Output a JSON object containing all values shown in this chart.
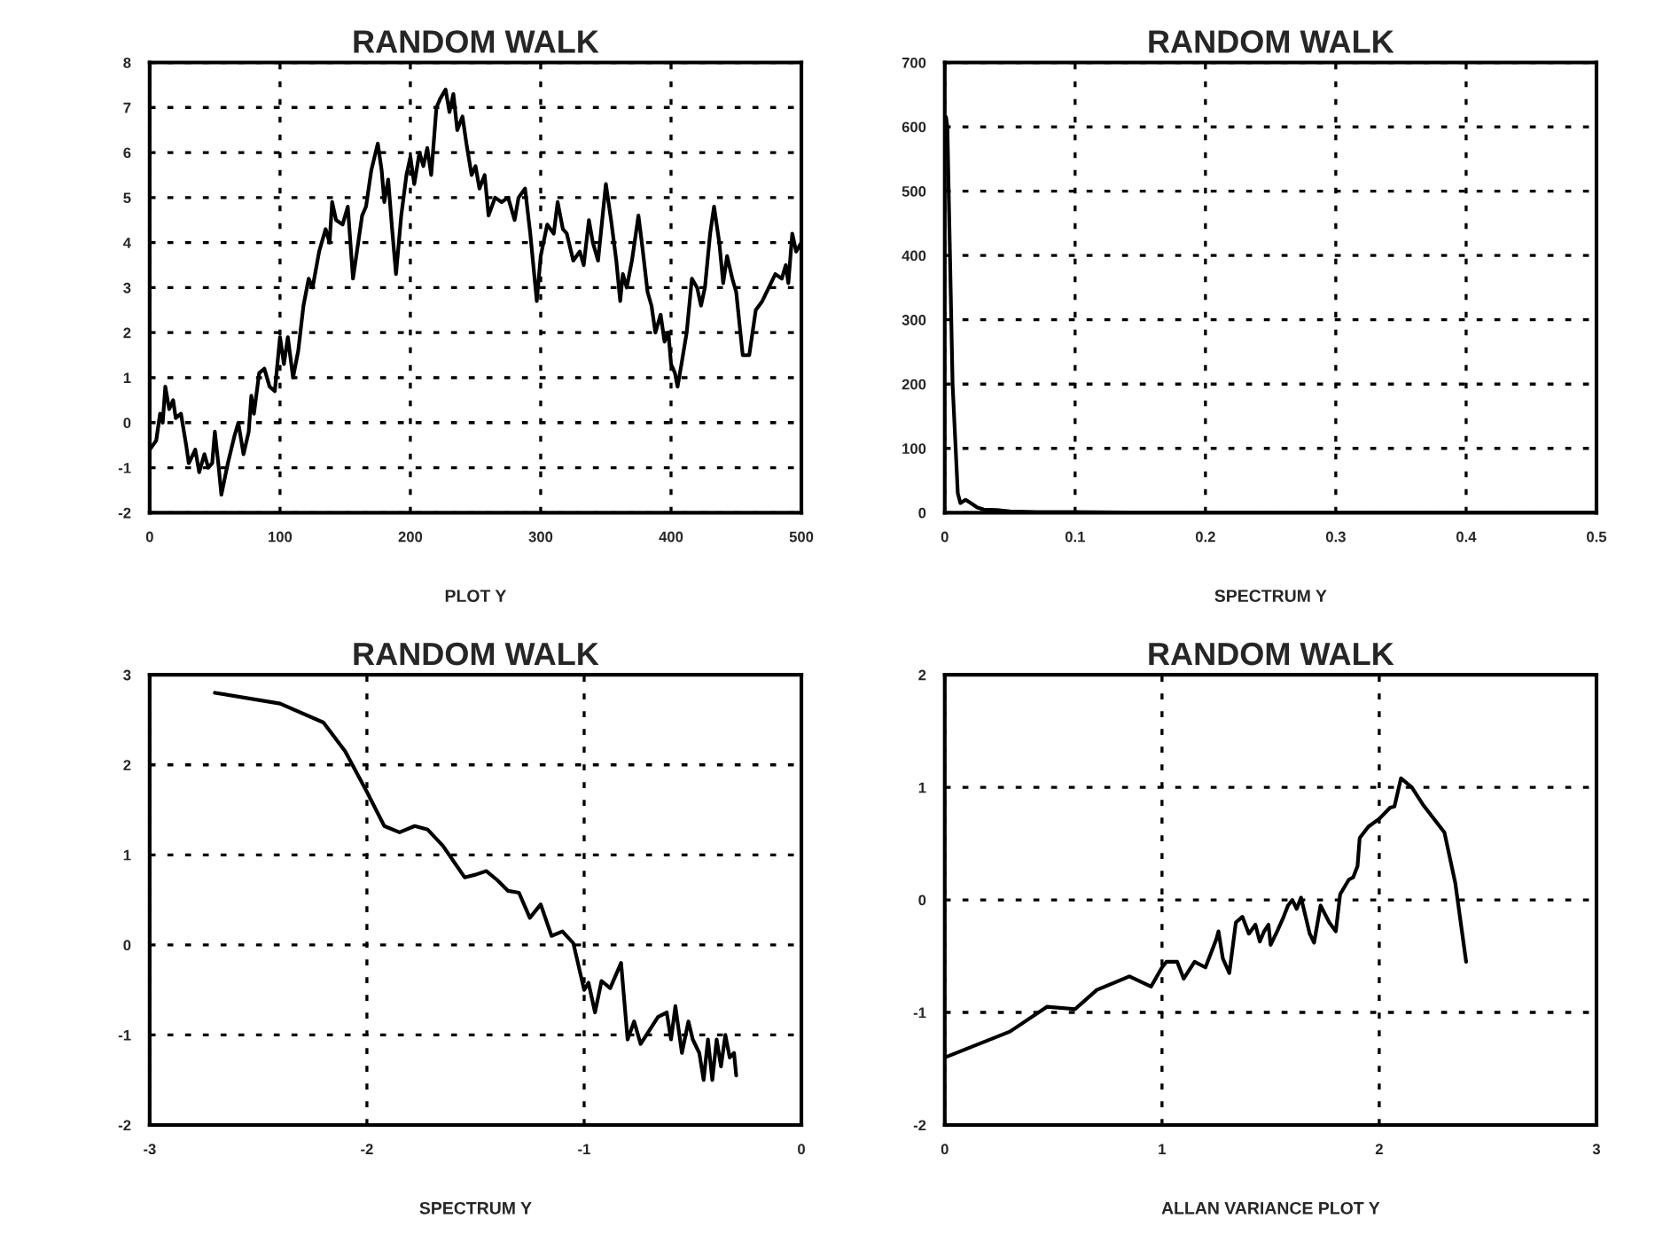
{
  "chart_data": [
    {
      "type": "line",
      "title": "RANDOM WALK",
      "xlabel": "PLOT Y",
      "xlim": [
        0,
        500
      ],
      "xticks": [
        0,
        100,
        200,
        300,
        400,
        500
      ],
      "ylim": [
        -2,
        8
      ],
      "yticks": [
        -2,
        -1,
        0,
        1,
        2,
        3,
        4,
        5,
        6,
        7,
        8
      ],
      "grid": true,
      "line_style": "solid",
      "series": [
        {
          "color": "#000000",
          "x": [
            0,
            5,
            8,
            10,
            12,
            15,
            18,
            20,
            24,
            28,
            30,
            35,
            38,
            42,
            45,
            48,
            50,
            53,
            55,
            60,
            65,
            68,
            72,
            76,
            78,
            80,
            84,
            88,
            92,
            96,
            100,
            103,
            106,
            110,
            114,
            118,
            122,
            125,
            130,
            135,
            138,
            140,
            143,
            148,
            152,
            156,
            160,
            163,
            166,
            170,
            175,
            178,
            180,
            183,
            186,
            189,
            193,
            197,
            200,
            203,
            207,
            210,
            213,
            216,
            220,
            223,
            227,
            230,
            233,
            236,
            240,
            243,
            247,
            250,
            253,
            257,
            260,
            265,
            270,
            275,
            280,
            283,
            288,
            292,
            297,
            300,
            305,
            310,
            313,
            317,
            320,
            325,
            330,
            333,
            337,
            340,
            344,
            350,
            354,
            358,
            361,
            363,
            366,
            370,
            375,
            378,
            382,
            385,
            388,
            392,
            395,
            398,
            400,
            403,
            405,
            408,
            412,
            416,
            420,
            423,
            426,
            430,
            433,
            437,
            440,
            443,
            447,
            450,
            455,
            460,
            465,
            470,
            475,
            480,
            485,
            488,
            490,
            493,
            496,
            500
          ],
          "values": [
            -0.6,
            -0.4,
            0.2,
            0.0,
            0.8,
            0.3,
            0.5,
            0.1,
            0.2,
            -0.5,
            -0.9,
            -0.6,
            -1.1,
            -0.7,
            -1.0,
            -0.9,
            -0.2,
            -1.0,
            -1.6,
            -0.9,
            -0.3,
            0.0,
            -0.7,
            -0.2,
            0.6,
            0.2,
            1.1,
            1.2,
            0.8,
            0.7,
            1.9,
            1.3,
            1.9,
            1.0,
            1.6,
            2.6,
            3.2,
            3.0,
            3.8,
            4.3,
            4.0,
            4.9,
            4.5,
            4.4,
            4.8,
            3.2,
            4.0,
            4.6,
            4.8,
            5.6,
            6.2,
            5.6,
            4.9,
            5.4,
            4.3,
            3.3,
            4.6,
            5.5,
            5.9,
            5.3,
            6.0,
            5.7,
            6.1,
            5.5,
            7.0,
            7.2,
            7.4,
            6.9,
            7.3,
            6.5,
            6.8,
            6.2,
            5.5,
            5.7,
            5.2,
            5.5,
            4.6,
            5.0,
            4.9,
            5.0,
            4.5,
            5.0,
            5.2,
            4.2,
            2.7,
            3.7,
            4.4,
            4.2,
            4.9,
            4.3,
            4.2,
            3.6,
            3.8,
            3.5,
            4.5,
            4.0,
            3.6,
            5.3,
            4.5,
            3.6,
            2.7,
            3.3,
            3.0,
            3.6,
            4.6,
            3.9,
            2.9,
            2.6,
            2.0,
            2.4,
            1.8,
            2.0,
            1.3,
            1.1,
            0.8,
            1.3,
            2.0,
            3.2,
            3.0,
            2.6,
            3.0,
            4.2,
            4.8,
            4.0,
            3.1,
            3.7,
            3.2,
            2.9,
            1.5,
            1.5,
            2.5,
            2.7,
            3.0,
            3.3,
            3.2,
            3.5,
            3.1,
            4.2,
            3.8,
            4.0
          ]
        }
      ]
    },
    {
      "type": "line",
      "title": "RANDOM WALK",
      "xlabel": "SPECTRUM Y",
      "xlim": [
        0,
        0.5
      ],
      "xticks": [
        0,
        0.1,
        0.2,
        0.3,
        0.4,
        0.5
      ],
      "ylim": [
        0,
        700
      ],
      "yticks": [
        0,
        100,
        200,
        300,
        400,
        500,
        600,
        700
      ],
      "grid": true,
      "line_style": "solid",
      "series": [
        {
          "color": "#000000",
          "x": [
            0.001,
            0.002,
            0.006,
            0.01,
            0.012,
            0.016,
            0.02,
            0.025,
            0.03,
            0.04,
            0.05,
            0.07,
            0.1,
            0.15,
            0.2,
            0.3,
            0.4,
            0.5
          ],
          "values": [
            615,
            600,
            200,
            30,
            15,
            20,
            15,
            8,
            5,
            4,
            2,
            1,
            1,
            0,
            0,
            0,
            0,
            0
          ]
        }
      ]
    },
    {
      "type": "line",
      "title": "RANDOM WALK",
      "xlabel": "SPECTRUM Y",
      "xlim": [
        -3,
        0
      ],
      "xticks": [
        -3,
        -2,
        -1,
        0
      ],
      "ylim": [
        -2,
        3
      ],
      "yticks": [
        -2,
        -1,
        0,
        1,
        2,
        3
      ],
      "grid": true,
      "line_style": "solid",
      "series": [
        {
          "color": "#000000",
          "x": [
            -2.7,
            -2.4,
            -2.2,
            -2.1,
            -2.0,
            -1.92,
            -1.85,
            -1.78,
            -1.72,
            -1.65,
            -1.55,
            -1.5,
            -1.45,
            -1.4,
            -1.35,
            -1.3,
            -1.25,
            -1.2,
            -1.15,
            -1.1,
            -1.05,
            -1.0,
            -0.98,
            -0.95,
            -0.92,
            -0.88,
            -0.83,
            -0.8,
            -0.77,
            -0.74,
            -0.7,
            -0.66,
            -0.62,
            -0.6,
            -0.58,
            -0.55,
            -0.52,
            -0.5,
            -0.47,
            -0.45,
            -0.43,
            -0.41,
            -0.39,
            -0.37,
            -0.35,
            -0.33,
            -0.31,
            -0.3
          ],
          "values": [
            2.8,
            2.68,
            2.47,
            2.15,
            1.7,
            1.32,
            1.25,
            1.32,
            1.28,
            1.1,
            0.75,
            0.78,
            0.82,
            0.72,
            0.6,
            0.58,
            0.3,
            0.45,
            0.1,
            0.15,
            0.02,
            -0.5,
            -0.42,
            -0.75,
            -0.4,
            -0.48,
            -0.2,
            -1.05,
            -0.85,
            -1.1,
            -0.95,
            -0.8,
            -0.75,
            -1.05,
            -0.68,
            -1.2,
            -0.85,
            -1.05,
            -1.2,
            -1.5,
            -1.05,
            -1.5,
            -1.05,
            -1.35,
            -1.0,
            -1.25,
            -1.2,
            -1.45
          ]
        }
      ]
    },
    {
      "type": "line",
      "title": "RANDOM WALK",
      "xlabel": "ALLAN VARIANCE PLOT Y",
      "xlim": [
        0,
        3
      ],
      "xticks": [
        0,
        1,
        2,
        3
      ],
      "ylim": [
        -2,
        2
      ],
      "yticks": [
        -2,
        -1,
        0,
        1,
        2
      ],
      "grid": true,
      "line_style": "solid",
      "series": [
        {
          "color": "#000000",
          "x": [
            0,
            0.3,
            0.47,
            0.6,
            0.7,
            0.85,
            0.95,
            1.0,
            1.02,
            1.07,
            1.1,
            1.15,
            1.2,
            1.25,
            1.26,
            1.28,
            1.31,
            1.34,
            1.37,
            1.4,
            1.43,
            1.45,
            1.47,
            1.49,
            1.5,
            1.53,
            1.56,
            1.58,
            1.6,
            1.62,
            1.64,
            1.68,
            1.7,
            1.73,
            1.77,
            1.8,
            1.82,
            1.86,
            1.88,
            1.9,
            1.91,
            1.95,
            2.0,
            2.05,
            2.07,
            2.1,
            2.15,
            2.2,
            2.3,
            2.35,
            2.4
          ],
          "values": [
            -1.4,
            -1.17,
            -0.95,
            -0.97,
            -0.8,
            -0.68,
            -0.77,
            -0.6,
            -0.55,
            -0.55,
            -0.7,
            -0.55,
            -0.6,
            -0.35,
            -0.28,
            -0.52,
            -0.65,
            -0.2,
            -0.15,
            -0.3,
            -0.22,
            -0.37,
            -0.28,
            -0.22,
            -0.4,
            -0.28,
            -0.15,
            -0.05,
            0.0,
            -0.08,
            0.02,
            -0.3,
            -0.38,
            -0.05,
            -0.2,
            -0.28,
            0.05,
            0.18,
            0.2,
            0.3,
            0.55,
            0.65,
            0.72,
            0.82,
            0.83,
            1.08,
            1.0,
            0.85,
            0.6,
            0.15,
            -0.55
          ]
        }
      ]
    }
  ]
}
